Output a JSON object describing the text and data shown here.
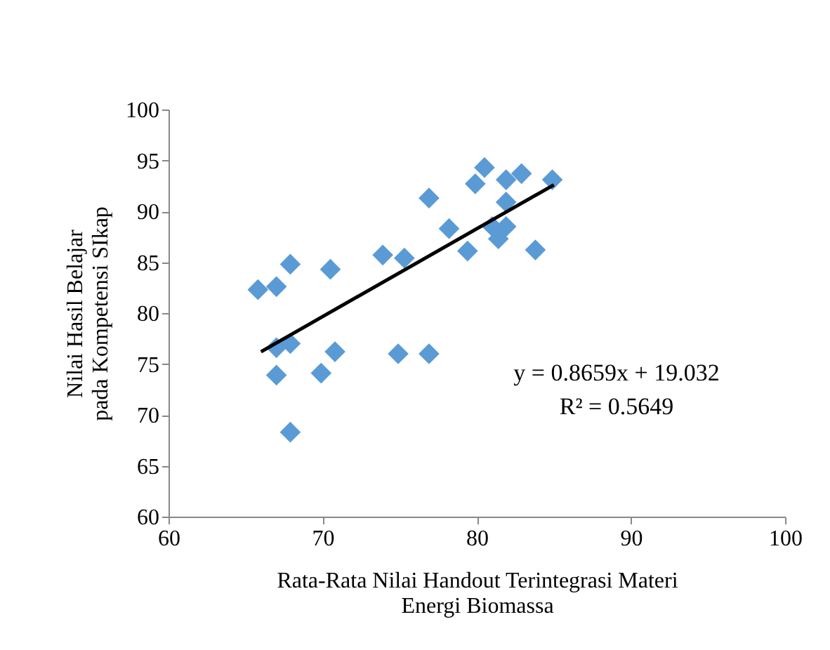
{
  "chart_data": {
    "type": "scatter",
    "xlabel": "Rata-Rata Nilai Handout Terintegrasi Materi Energi Biomassa",
    "ylabel": "Nilai Hasil Belajar pada Kompetensi SIkap",
    "xlim": [
      60,
      100
    ],
    "xticks": [
      60,
      70,
      80,
      90,
      100
    ],
    "ylim": [
      60,
      100
    ],
    "yticks": [
      60,
      65,
      70,
      75,
      80,
      85,
      90,
      95,
      100
    ],
    "grid": false,
    "marker": "diamond",
    "annotations": [
      "y = 0.8659x + 19.032",
      "R² = 0.5649"
    ],
    "series": [
      {
        "color": "#5b9bd5",
        "x": [
          65.8,
          67.0,
          67.9,
          70.5,
          73.9,
          75.3,
          76.9,
          78.2,
          79.4,
          79.9,
          80.5,
          81.9,
          82.9,
          81.9,
          81.0,
          81.4,
          81.9,
          83.8,
          84.9,
          67.0,
          67.9,
          67.0,
          69.9,
          70.8,
          74.9,
          76.9,
          67.9
        ],
        "values": [
          82.3,
          82.6,
          84.8,
          84.3,
          85.7,
          85.4,
          91.3,
          88.3,
          86.1,
          92.7,
          94.3,
          93.1,
          93.7,
          90.9,
          88.5,
          87.3,
          88.5,
          86.2,
          93.1,
          76.6,
          77.0,
          73.9,
          74.1,
          76.2,
          76.0,
          76.0,
          68.3
        ]
      },
      {
        "type": "line",
        "color": "#000000",
        "marker": "none",
        "line_style": "solid",
        "x": [
          66,
          85
        ],
        "values": [
          76.2,
          92.6
        ]
      }
    ]
  }
}
